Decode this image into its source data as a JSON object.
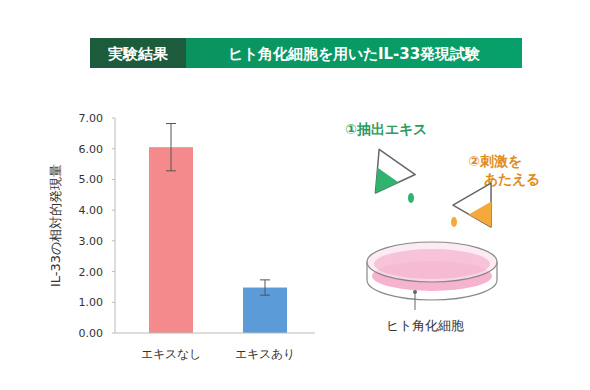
{
  "header": {
    "tag": "実験結果",
    "title": "ヒト角化細胞を用いたIL-33発現試験"
  },
  "chart_data": {
    "type": "bar",
    "y_label": "IL-33の相対的発現量",
    "categories": [
      "エキスなし",
      "エキスあり"
    ],
    "values": [
      6.05,
      1.48
    ],
    "errors": [
      0.77,
      0.25
    ],
    "colors": [
      "#f48a8b",
      "#5b9bd8"
    ],
    "ylim": [
      0,
      7
    ],
    "yticks": [
      {
        "value": 0,
        "label": "0.00"
      },
      {
        "value": 1,
        "label": "1.00"
      },
      {
        "value": 2,
        "label": "2.00"
      },
      {
        "value": 3,
        "label": "3.00"
      },
      {
        "value": 4,
        "label": "4.00"
      },
      {
        "value": 5,
        "label": "5.00"
      },
      {
        "value": 6,
        "label": "6.00"
      },
      {
        "value": 7,
        "label": "7.00"
      }
    ],
    "grid": false
  },
  "diagram": {
    "step1": "①抽出エキス",
    "step2": [
      "②刺激を",
      "あたえる"
    ],
    "cells": "ヒト角化細胞"
  }
}
